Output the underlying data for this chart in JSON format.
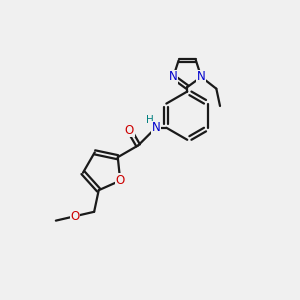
{
  "bg_color": "#f0f0f0",
  "bond_color": "#1a1a1a",
  "N_color": "#0000cd",
  "O_color": "#cc0000",
  "H_color": "#008080",
  "C_color": "#1a1a1a",
  "bond_width": 1.6,
  "font_size_atom": 8.5,
  "figsize": [
    3.0,
    3.0
  ],
  "dpi": 100,
  "xlim": [
    0,
    10
  ],
  "ylim": [
    0,
    10
  ]
}
